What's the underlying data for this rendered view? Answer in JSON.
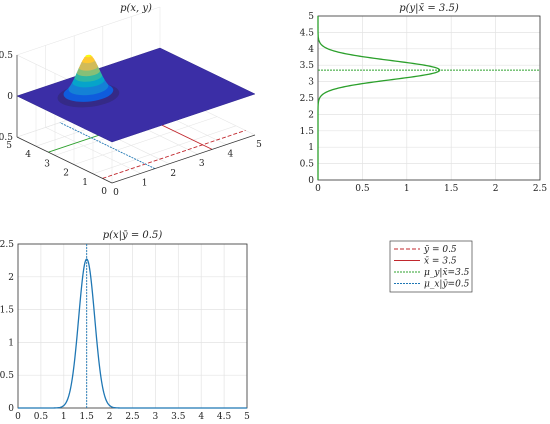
{
  "chart_data": [
    {
      "type": "surface",
      "title": "p(x, y)",
      "x_ticks": [
        "0",
        "1",
        "2",
        "3",
        "4",
        "5"
      ],
      "y_ticks": [
        "0",
        "1",
        "2",
        "3",
        "4",
        "5"
      ],
      "z_ticks": [
        "0.5",
        "0",
        "-0.5"
      ],
      "xlim": [
        0,
        5
      ],
      "ylim": [
        0,
        5
      ],
      "zlim": [
        -0.5,
        0.5
      ],
      "peak": {
        "x": 1.5,
        "y": 3.5,
        "z": 0.5
      },
      "grid": true
    },
    {
      "type": "line",
      "title": "p(y|x̄ = 3.5)",
      "xlim": [
        0,
        2.5
      ],
      "ylim": [
        0,
        5
      ],
      "x_ticks": [
        "0",
        "0.5",
        "1",
        "1.5",
        "2",
        "2.5"
      ],
      "y_ticks": [
        "5",
        "4.5",
        "4",
        "3.5",
        "3",
        "2.5",
        "2",
        "1.5",
        "1",
        "0.5",
        "0"
      ],
      "orientation": "horizontal",
      "mean": 3.35,
      "sigma": 0.29,
      "peak": 1.37,
      "series": [
        {
          "values_desc": "gaussian",
          "color": "#2ca02c"
        }
      ],
      "mean_line_color": "#2ca02c",
      "grid": true
    },
    {
      "type": "line",
      "title": "p(x|ȳ = 0.5)",
      "xlim": [
        0,
        5
      ],
      "ylim": [
        0,
        2.5
      ],
      "x_ticks": [
        "0",
        "0.5",
        "1",
        "1.5",
        "2",
        "2.5",
        "3",
        "3.5",
        "4",
        "4.5",
        "5"
      ],
      "y_ticks": [
        "2.5",
        "2",
        "1.5",
        "1",
        "0.5",
        "0"
      ],
      "mean": 1.5,
      "sigma": 0.175,
      "peak": 2.27,
      "series": [
        {
          "values_desc": "gaussian",
          "color": "#1f77b4"
        }
      ],
      "mean_line_color": "#1f77b4",
      "grid": true
    }
  ],
  "legend": {
    "placement": "right",
    "entries": [
      {
        "label": "ȳ = 0.5",
        "color": "#c1272d",
        "dash": "4,2"
      },
      {
        "label": "x̄ = 3.5",
        "color": "#c1272d",
        "dash": ""
      },
      {
        "label": "μ_y|x̄=3.5",
        "color": "#2ca02c",
        "dash": "2,1"
      },
      {
        "label": "μ_x|ȳ=0.5",
        "color": "#1f77b4",
        "dash": "2,1"
      }
    ]
  }
}
